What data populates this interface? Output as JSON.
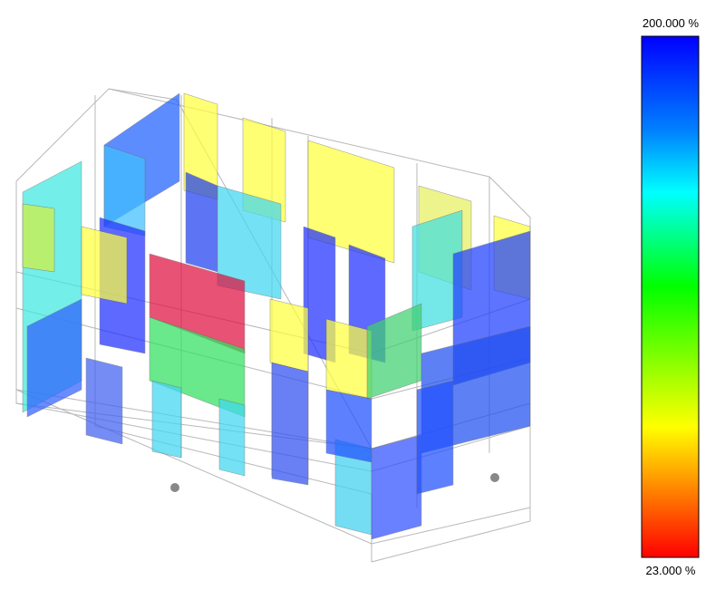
{
  "legend": {
    "max_label": "200.000 %",
    "min_label": "23.000 %"
  }
}
